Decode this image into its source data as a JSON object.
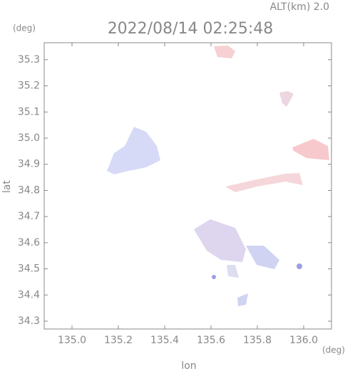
{
  "chart_data": {
    "type": "map",
    "title": "2022/08/14 02:25:48",
    "subtitle": "ALT(km) 2.0",
    "x_label": "lon",
    "y_label": "lat",
    "x_unit": "(deg)",
    "y_unit": "(deg)",
    "xlim": [
      134.88,
      136.12
    ],
    "ylim": [
      34.27,
      35.365
    ],
    "xticks": [
      {
        "value": 135,
        "label": "135.0"
      },
      135.2,
      135.4,
      135.6,
      135.8,
      {
        "value": 136,
        "label": "136.0"
      }
    ],
    "yticks": [
      34.3,
      34.4,
      34.5,
      34.6,
      34.7,
      34.8,
      34.9,
      {
        "value": 35,
        "label": "35.0"
      },
      35.1,
      35.2,
      35.3
    ]
  }
}
